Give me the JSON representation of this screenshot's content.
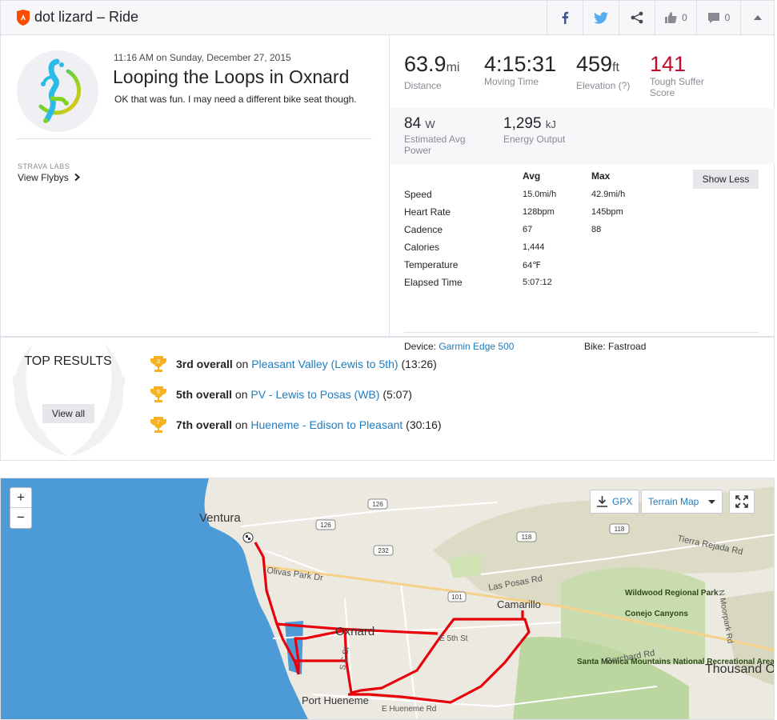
{
  "header": {
    "title": "dot lizard – Ride",
    "kudos_count": "0",
    "comments_count": "0"
  },
  "activity": {
    "time": "11:16 AM on Sunday, December 27, 2015",
    "title": "Looping the Loops in Oxnard",
    "description": "OK that was fun. I may need a different bike seat though.",
    "labs_label": "STRAVA LABS",
    "flybys_label": "View Flybys"
  },
  "stats": {
    "distance": {
      "value": "63.9",
      "unit": "mi",
      "label": "Distance"
    },
    "moving_time": {
      "value": "4:15:31",
      "label": "Moving Time"
    },
    "elevation": {
      "value": "459",
      "unit": "ft",
      "label": "Elevation (?)"
    },
    "suffer": {
      "value": "141",
      "label": "Tough Suffer Score"
    },
    "power": {
      "value": "84",
      "unit": "W",
      "label": "Estimated Avg Power"
    },
    "energy": {
      "value": "1,295",
      "unit": "kJ",
      "label": "Energy Output"
    }
  },
  "details": {
    "avg_header": "Avg",
    "max_header": "Max",
    "show_less": "Show Less",
    "rows": [
      {
        "label": "Speed",
        "avg": "15.0mi/h",
        "max": "42.9mi/h"
      },
      {
        "label": "Heart Rate",
        "avg": "128bpm",
        "max": "145bpm"
      },
      {
        "label": "Cadence",
        "avg": "67",
        "max": "88"
      },
      {
        "label": "Calories",
        "avg": "1,444",
        "max": ""
      },
      {
        "label": "Temperature",
        "avg": "64℉",
        "max": ""
      },
      {
        "label": "Elapsed Time",
        "avg": "5:07:12",
        "max": ""
      }
    ],
    "device_label": "Device:",
    "device_value": "Garmin Edge 500",
    "bike_label": "Bike:",
    "bike_value": "Fastroad"
  },
  "top_results": {
    "heading": "TOP RESULTS",
    "view_all": "View all",
    "items": [
      {
        "rank": "3rd overall",
        "on": "on",
        "segment": "Pleasant Valley (Lewis to 5th)",
        "time": "(13:26)",
        "badge": "3"
      },
      {
        "rank": "5th overall",
        "on": "on",
        "segment": "PV - Lewis to Posas (WB)",
        "time": "(5:07)",
        "badge": "5"
      },
      {
        "rank": "7th overall",
        "on": "on",
        "segment": "Hueneme - Edison to Pleasant",
        "time": "(30:16)",
        "badge": "7"
      }
    ]
  },
  "map": {
    "zoom_in": "+",
    "zoom_out": "−",
    "gpx_label": "GPX",
    "terrain_label": "Terrain Map",
    "places": [
      "Ventura",
      "Oxnard",
      "Camarillo",
      "Port Hueneme",
      "Thousand O",
      "Wildwood Regional Park",
      "Conejo Canyons",
      "Santa Monica Mountains National Recreational Area"
    ],
    "roads": [
      "Olivas Park Dr",
      "Las Posas Rd",
      "E 5th St",
      "E Hueneme Rd",
      "Borchard Rd",
      "Tierra Rejada Rd",
      "N Moorpark Rd",
      "S C St"
    ],
    "shields": [
      "126",
      "126",
      "232",
      "118",
      "118",
      "101"
    ]
  },
  "colors": {
    "accent": "#fc4c02",
    "link": "#1e7cbf",
    "suffer": "#bf0e27",
    "route": "#e8000b",
    "water": "#4d9bd6",
    "land": "#ece9e1"
  }
}
